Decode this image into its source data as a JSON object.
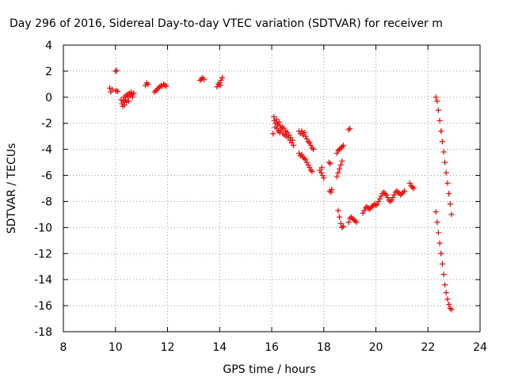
{
  "chart_data": {
    "type": "scatter",
    "title": "Day 296 of 2016, Sidereal Day-to-day VTEC variation (SDTVAR) for receiver m",
    "xlabel": "GPS time / hours",
    "ylabel": "SDTVAR / TECUs",
    "xlim": [
      8,
      24
    ],
    "ylim": [
      -18,
      4
    ],
    "xticks": [
      8,
      10,
      12,
      14,
      16,
      18,
      20,
      22,
      24
    ],
    "yticks": [
      4,
      2,
      0,
      -2,
      -4,
      -6,
      -8,
      -10,
      -12,
      -14,
      -16,
      -18
    ],
    "grid": true,
    "marker": "plus",
    "color": "#ff0000",
    "segments": [
      [
        [
          9.78,
          0.7
        ],
        [
          9.82,
          0.4
        ],
        [
          9.88,
          0.6
        ]
      ],
      [
        [
          10.0,
          2.0
        ],
        [
          10.05,
          2.05
        ],
        [
          10.02,
          0.5
        ],
        [
          10.08,
          0.45
        ]
      ],
      [
        [
          10.22,
          -0.2
        ],
        [
          10.25,
          -0.5
        ],
        [
          10.28,
          -0.7
        ],
        [
          10.3,
          -0.3
        ],
        [
          10.32,
          0.0
        ],
        [
          10.35,
          -0.6
        ],
        [
          10.38,
          -0.2
        ],
        [
          10.4,
          0.1
        ],
        [
          10.42,
          -0.4
        ],
        [
          10.45,
          0.2
        ],
        [
          10.48,
          0.0
        ],
        [
          10.5,
          -0.3
        ],
        [
          10.53,
          0.3
        ],
        [
          10.56,
          0.1
        ],
        [
          10.6,
          0.4
        ],
        [
          10.63,
          0.2
        ],
        [
          10.66,
          0.0
        ],
        [
          10.7,
          0.3
        ]
      ],
      [
        [
          11.15,
          0.9
        ],
        [
          11.2,
          1.1
        ],
        [
          11.25,
          1.0
        ]
      ],
      [
        [
          11.5,
          0.4
        ],
        [
          11.55,
          0.5
        ],
        [
          11.6,
          0.6
        ],
        [
          11.65,
          0.7
        ],
        [
          11.7,
          0.8
        ],
        [
          11.75,
          0.9
        ],
        [
          11.8,
          0.85
        ],
        [
          11.85,
          1.0
        ],
        [
          11.9,
          0.9
        ],
        [
          11.95,
          0.85
        ]
      ],
      [
        [
          13.25,
          1.3
        ],
        [
          13.3,
          1.4
        ],
        [
          13.35,
          1.5
        ],
        [
          13.4,
          1.35
        ]
      ],
      [
        [
          13.9,
          0.8
        ],
        [
          13.95,
          1.0
        ],
        [
          14.0,
          1.1
        ],
        [
          14.05,
          1.3
        ],
        [
          14.1,
          1.5
        ],
        [
          14.02,
          0.9
        ]
      ],
      [
        [
          16.05,
          -2.8
        ],
        [
          16.08,
          -1.5
        ],
        [
          16.1,
          -1.8
        ],
        [
          16.13,
          -2.3
        ],
        [
          16.15,
          -2.0
        ],
        [
          16.18,
          -1.7
        ],
        [
          16.2,
          -2.4
        ],
        [
          16.23,
          -2.1
        ],
        [
          16.25,
          -2.6
        ],
        [
          16.28,
          -1.9
        ],
        [
          16.3,
          -2.7
        ],
        [
          16.33,
          -2.2
        ],
        [
          16.36,
          -2.5
        ],
        [
          16.4,
          -2.3
        ],
        [
          16.43,
          -2.8
        ],
        [
          16.46,
          -2.4
        ],
        [
          16.5,
          -2.9
        ],
        [
          16.53,
          -2.6
        ],
        [
          16.56,
          -3.0
        ],
        [
          16.6,
          -2.7
        ],
        [
          16.63,
          -3.1
        ],
        [
          16.66,
          -2.9
        ],
        [
          16.7,
          -3.3
        ],
        [
          16.73,
          -3.1
        ],
        [
          16.76,
          -3.5
        ],
        [
          16.8,
          -3.3
        ],
        [
          16.83,
          -3.7
        ]
      ],
      [
        [
          17.05,
          -2.6
        ],
        [
          17.1,
          -2.8
        ],
        [
          17.15,
          -2.6
        ],
        [
          17.2,
          -2.9
        ],
        [
          17.25,
          -2.7
        ],
        [
          17.3,
          -3.0
        ],
        [
          17.35,
          -3.2
        ],
        [
          17.4,
          -3.4
        ],
        [
          17.45,
          -3.5
        ],
        [
          17.5,
          -3.7
        ],
        [
          17.55,
          -3.9
        ],
        [
          17.6,
          -4.0
        ]
      ],
      [
        [
          17.05,
          -4.3
        ],
        [
          17.1,
          -4.5
        ],
        [
          17.15,
          -4.4
        ],
        [
          17.2,
          -4.6
        ],
        [
          17.25,
          -4.7
        ],
        [
          17.3,
          -4.8
        ],
        [
          17.35,
          -5.0
        ],
        [
          17.4,
          -5.2
        ],
        [
          17.45,
          -5.4
        ],
        [
          17.5,
          -5.6
        ],
        [
          17.55,
          -5.7
        ]
      ],
      [
        [
          17.85,
          -5.6
        ],
        [
          17.9,
          -5.8
        ],
        [
          17.95,
          -6.0
        ],
        [
          18.0,
          -6.2
        ],
        [
          17.92,
          -5.4
        ]
      ],
      [
        [
          18.2,
          -5.0
        ],
        [
          18.25,
          -5.1
        ],
        [
          18.22,
          -7.2
        ],
        [
          18.28,
          -7.3
        ],
        [
          18.3,
          -7.1
        ]
      ],
      [
        [
          18.5,
          -6.1
        ],
        [
          18.55,
          -5.8
        ],
        [
          18.6,
          -5.5
        ],
        [
          18.65,
          -5.2
        ],
        [
          18.7,
          -4.9
        ]
      ],
      [
        [
          18.5,
          -4.3
        ],
        [
          18.55,
          -4.1
        ],
        [
          18.6,
          -4.0
        ],
        [
          18.65,
          -3.9
        ],
        [
          18.7,
          -3.8
        ],
        [
          18.75,
          -3.7
        ]
      ],
      [
        [
          18.55,
          -8.7
        ],
        [
          18.6,
          -9.2
        ],
        [
          18.65,
          -9.7
        ],
        [
          18.7,
          -10.0
        ],
        [
          18.75,
          -9.9
        ]
      ],
      [
        [
          18.95,
          -2.5
        ],
        [
          19.0,
          -2.4
        ]
      ],
      [
        [
          18.95,
          -9.6
        ],
        [
          19.0,
          -9.3
        ],
        [
          19.05,
          -9.2
        ],
        [
          19.1,
          -9.3
        ],
        [
          19.15,
          -9.4
        ],
        [
          19.2,
          -9.5
        ],
        [
          19.25,
          -9.6
        ]
      ],
      [
        [
          19.5,
          -8.9
        ],
        [
          19.55,
          -8.7
        ],
        [
          19.6,
          -8.5
        ],
        [
          19.65,
          -8.4
        ],
        [
          19.7,
          -8.5
        ],
        [
          19.75,
          -8.6
        ],
        [
          19.8,
          -8.5
        ],
        [
          19.85,
          -8.4
        ],
        [
          19.9,
          -8.3
        ],
        [
          19.95,
          -8.2
        ],
        [
          20.0,
          -8.3
        ],
        [
          20.05,
          -8.2
        ],
        [
          20.1,
          -8.0
        ],
        [
          20.15,
          -7.8
        ],
        [
          20.2,
          -7.6
        ],
        [
          20.25,
          -7.4
        ],
        [
          20.3,
          -7.3
        ],
        [
          20.35,
          -7.4
        ],
        [
          20.4,
          -7.5
        ],
        [
          20.45,
          -7.7
        ],
        [
          20.5,
          -7.9
        ],
        [
          20.55,
          -8.0
        ],
        [
          20.6,
          -7.9
        ],
        [
          20.65,
          -7.7
        ],
        [
          20.7,
          -7.5
        ],
        [
          20.75,
          -7.3
        ],
        [
          20.8,
          -7.2
        ],
        [
          20.85,
          -7.3
        ],
        [
          20.9,
          -7.4
        ],
        [
          20.95,
          -7.5
        ],
        [
          21.0,
          -7.4
        ],
        [
          21.05,
          -7.3
        ],
        [
          21.1,
          -7.2
        ]
      ],
      [
        [
          21.3,
          -6.6
        ],
        [
          21.35,
          -6.8
        ],
        [
          21.4,
          -6.9
        ],
        [
          21.45,
          -7.0
        ]
      ],
      [
        [
          22.3,
          0.0
        ],
        [
          22.35,
          -0.3
        ],
        [
          22.4,
          -1.0
        ],
        [
          22.45,
          -1.8
        ],
        [
          22.5,
          -2.6
        ],
        [
          22.55,
          -3.4
        ],
        [
          22.6,
          -4.2
        ],
        [
          22.65,
          -5.0
        ],
        [
          22.7,
          -5.8
        ],
        [
          22.75,
          -6.6
        ],
        [
          22.8,
          -7.4
        ],
        [
          22.85,
          -8.2
        ],
        [
          22.9,
          -9.0
        ]
      ],
      [
        [
          22.3,
          -8.8
        ],
        [
          22.35,
          -9.6
        ],
        [
          22.4,
          -10.4
        ],
        [
          22.45,
          -11.2
        ],
        [
          22.5,
          -12.0
        ],
        [
          22.55,
          -12.8
        ],
        [
          22.6,
          -13.6
        ],
        [
          22.65,
          -14.4
        ],
        [
          22.7,
          -15.0
        ],
        [
          22.75,
          -15.5
        ],
        [
          22.8,
          -15.9
        ],
        [
          22.85,
          -16.2
        ],
        [
          22.9,
          -16.3
        ]
      ]
    ]
  }
}
